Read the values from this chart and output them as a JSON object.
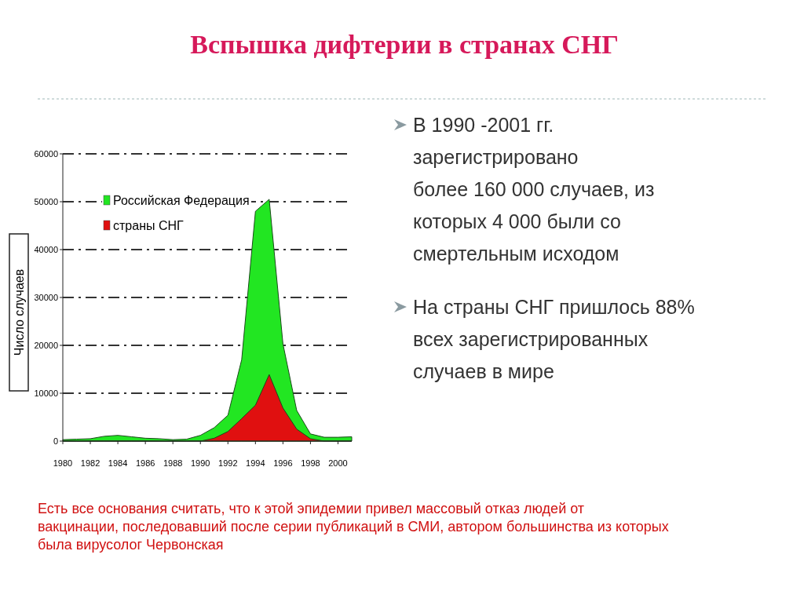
{
  "chart_data": {
    "type": "area",
    "title": "Вспышка дифтерии в странах СНГ",
    "ylabel": "Число случаев",
    "x": [
      1980,
      1981,
      1982,
      1983,
      1984,
      1985,
      1986,
      1987,
      1988,
      1989,
      1990,
      1991,
      1992,
      1993,
      1994,
      1995,
      1996,
      1997,
      1998,
      1999,
      2000,
      2001
    ],
    "series": [
      {
        "name": "Российская Федерация",
        "color": "#22e622",
        "values": [
          300,
          400,
          500,
          1000,
          1200,
          900,
          600,
          500,
          300,
          400,
          1200,
          2800,
          5400,
          17000,
          48000,
          50500,
          20300,
          6400,
          1500,
          800,
          800,
          900
        ]
      },
      {
        "name": "страны СНГ",
        "color": "#e01010",
        "values": [
          0,
          0,
          0,
          0,
          0,
          0,
          0,
          0,
          0,
          0,
          0,
          600,
          2000,
          4700,
          7500,
          13900,
          6900,
          2500,
          500,
          0,
          0,
          0
        ]
      }
    ],
    "xlim": [
      1980,
      2001
    ],
    "xticks": [
      1980,
      1982,
      1984,
      1986,
      1988,
      1990,
      1992,
      1994,
      1996,
      1998,
      2000
    ],
    "ylim": [
      0,
      60000
    ],
    "yticks": [
      0,
      10000,
      20000,
      30000,
      40000,
      50000,
      60000
    ],
    "grid": "y",
    "legend": "top left",
    "annotations": [
      "В 1990 -2001 гг. зарегистрировано более 160 000 случаев, из которых 4 000 были со смертельным исходом",
      "На страны СНГ пришлось 88% всех зарегистрированных случаев в мире",
      "Есть все основания считать, что к этой эпидемии привел массовый отказ людей от вакцинации, последовавший после серии публикаций в СМИ, автором большинства из которых была вирусолог Червонская"
    ]
  }
}
